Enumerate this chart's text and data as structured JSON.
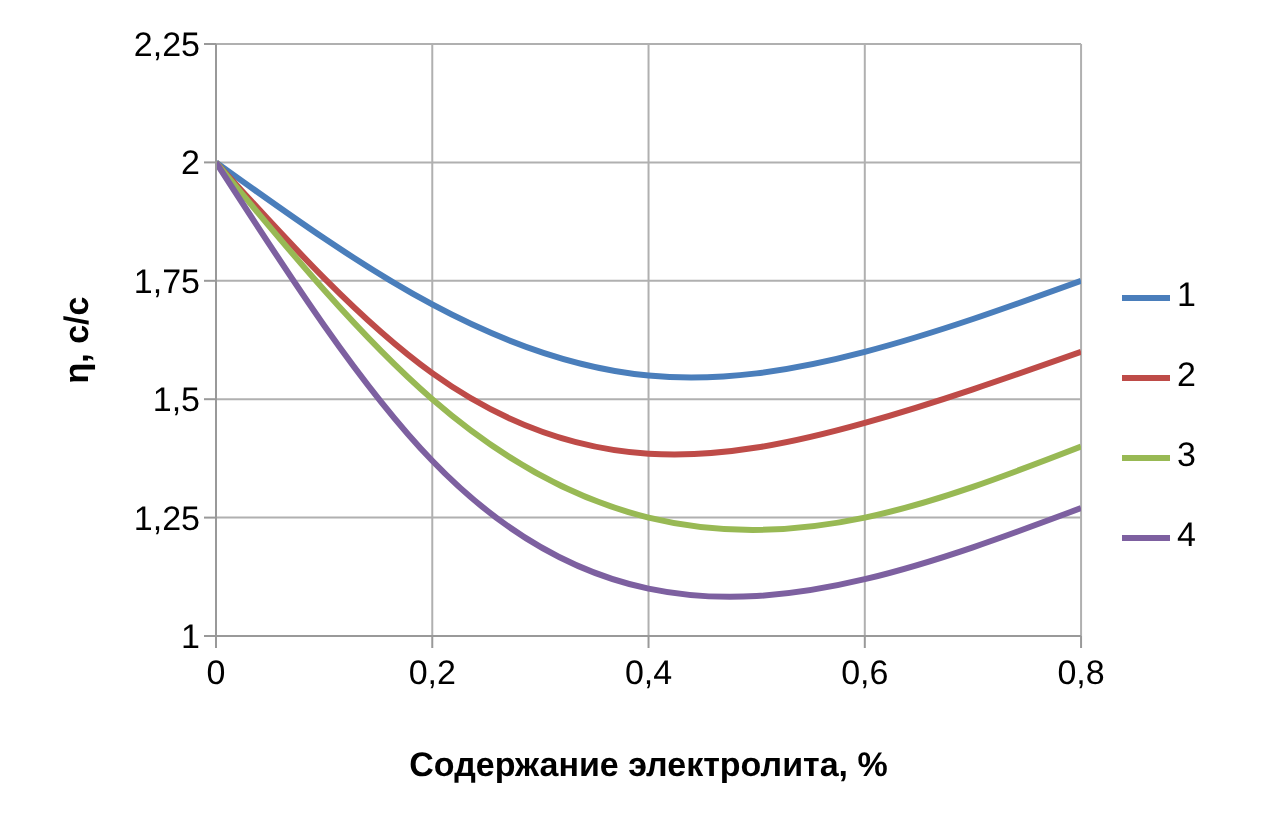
{
  "chart_data": {
    "type": "line",
    "xlabel": "Содержание электролита, %",
    "ylabel": "η, с/с",
    "x": [
      0,
      0.2,
      0.4,
      0.6,
      0.8
    ],
    "series": [
      {
        "name": "1",
        "color": "#4a7ebb",
        "values": [
          2,
          1.7,
          1.55,
          1.6,
          1.75
        ]
      },
      {
        "name": "2",
        "color": "#be4b48",
        "values": [
          2,
          1.555,
          1.385,
          1.45,
          1.6
        ]
      },
      {
        "name": "3",
        "color": "#98b954",
        "values": [
          2,
          1.5,
          1.25,
          1.25,
          1.4
        ]
      },
      {
        "name": "4",
        "color": "#7d60a0",
        "values": [
          2,
          1.37,
          1.1,
          1.12,
          1.27
        ]
      }
    ],
    "xlim": [
      0,
      0.8
    ],
    "xticks": [
      0,
      {
        "value": 0.2,
        "label": "0,2"
      },
      {
        "value": 0.4,
        "label": "0,4"
      },
      {
        "value": 0.6,
        "label": "0,6"
      },
      {
        "value": 0.8,
        "label": "0,8"
      }
    ],
    "ylim": [
      1,
      2.25
    ],
    "yticks": [
      1,
      {
        "value": 1.25,
        "label": "1,25"
      },
      {
        "value": 1.5,
        "label": "1,5"
      },
      {
        "value": 1.75,
        "label": "1,75"
      },
      2,
      {
        "value": 2.25,
        "label": "2,25"
      }
    ],
    "grid": true,
    "legend": "right",
    "marker": "none",
    "line_style": "solid"
  }
}
